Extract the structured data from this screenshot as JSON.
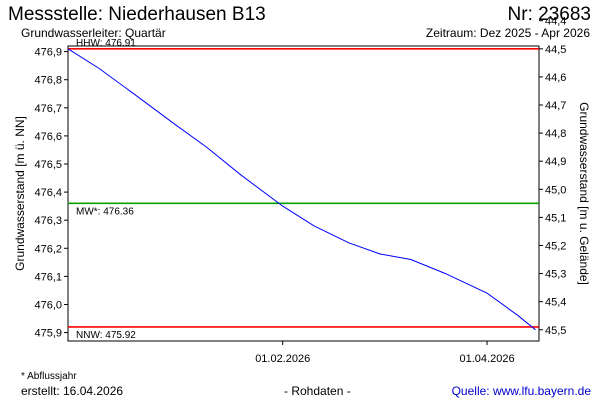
{
  "header": {
    "title": "Messstelle: Niederhausen B13",
    "number": "Nr: 23683",
    "aquifer": "Grundwasserleiter: Quartär",
    "period": "Zeitraum: Dez 2025 - Apr 2026"
  },
  "footer": {
    "footnote": "* Abflussjahr",
    "created": "erstellt:  16.04.2026",
    "rohdaten": "- Rohdaten -",
    "source": "Quelle: www.lfu.bayern.de"
  },
  "colors": {
    "series": "#0000ff",
    "extreme": "#ff0000",
    "mean": "#00a000",
    "axis": "#000000"
  },
  "chart_data": {
    "type": "line",
    "ylabel": "Grundwasserstand [m ü. NN]",
    "ylabel_right": "Grundwasserstand [m u. Gelände]",
    "ylim": [
      475.87,
      476.92
    ],
    "yticks": [
      476.9,
      476.8,
      476.7,
      476.6,
      476.5,
      476.4,
      476.3,
      476.2,
      476.1,
      476.0,
      475.9
    ],
    "ytick_labels": [
      "476,9",
      "476,8",
      "476,7",
      "476,6",
      "476,5",
      "476,4",
      "476,3",
      "476,2",
      "476,1",
      "476,0",
      "475,9"
    ],
    "y2ticks": [
      44.4,
      44.5,
      44.6,
      44.7,
      44.8,
      44.9,
      45.0,
      45.1,
      45.2,
      45.3,
      45.4,
      45.5
    ],
    "y2tick_labels": [
      "44,4",
      "44,5",
      "44,6",
      "44,7",
      "44,8",
      "44,9",
      "45,0",
      "45,1",
      "45,2",
      "45,3",
      "45,4",
      "45,5"
    ],
    "xlim": [
      "2025-12-01",
      "2026-04-16"
    ],
    "xticks": [
      "2026-02-01",
      "2026-04-01"
    ],
    "xtick_labels": [
      "01.02.2026",
      "01.04.2026"
    ],
    "reference_lines": [
      {
        "label": "HHW: 476.91",
        "value": 476.91,
        "kind": "extreme"
      },
      {
        "label": "MW*: 476.36",
        "value": 476.36,
        "kind": "mean"
      },
      {
        "label": "NNW: 475.92",
        "value": 475.92,
        "kind": "extreme"
      }
    ],
    "series": [
      {
        "x": [
          "2025-12-01",
          "2025-12-10",
          "2025-12-20",
          "2026-01-01",
          "2026-01-10",
          "2026-01-20",
          "2026-02-01",
          "2026-02-10",
          "2026-02-20",
          "2026-03-01",
          "2026-03-10",
          "2026-03-20",
          "2026-04-01",
          "2026-04-10",
          "2026-04-15"
        ],
        "y": [
          476.91,
          476.84,
          476.75,
          476.64,
          476.56,
          476.46,
          476.35,
          476.28,
          476.22,
          476.18,
          476.16,
          476.11,
          476.04,
          475.96,
          475.91
        ]
      }
    ]
  }
}
